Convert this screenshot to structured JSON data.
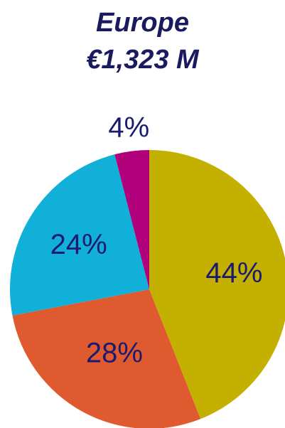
{
  "chart_data": {
    "type": "pie",
    "title": "Europe",
    "subtitle": "€1,323 M",
    "start_angle_deg": 0,
    "direction": "clockwise",
    "slices": [
      {
        "label": "44%",
        "value": 44,
        "color": "#c4b000"
      },
      {
        "label": "28%",
        "value": 28,
        "color": "#e05a30"
      },
      {
        "label": "24%",
        "value": 24,
        "color": "#10b0d8"
      },
      {
        "label": "4%",
        "value": 4,
        "color": "#b0007c"
      }
    ]
  }
}
